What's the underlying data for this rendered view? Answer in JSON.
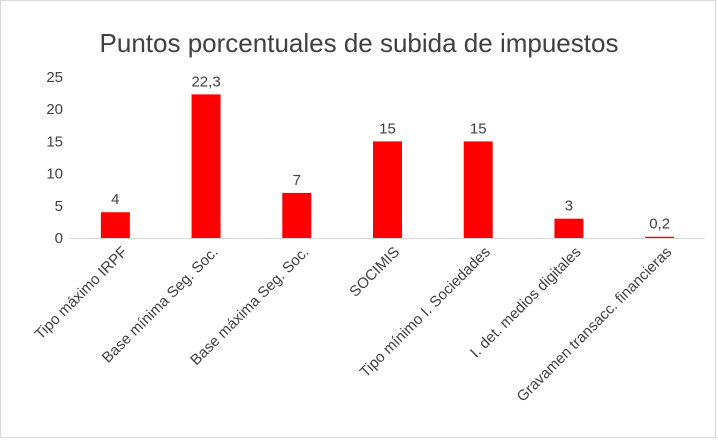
{
  "chart_data": {
    "type": "bar",
    "title": "Puntos porcentuales de subida de impuestos",
    "categories": [
      "Tipo máximo IRPF",
      "Base mínima Seg. Soc.",
      "Base máxima Seg. Soc.",
      "SOCIMIS",
      "Tipo mínimo I. Sociedades",
      "I. det. medios digitales",
      "Gravamen transacc. financieras"
    ],
    "values": [
      4,
      22.3,
      7,
      15,
      15,
      3,
      0.2
    ],
    "value_labels": [
      "4",
      "22,3",
      "7",
      "15",
      "15",
      "3",
      "0,2"
    ],
    "ylim": [
      0,
      25
    ],
    "yticks": [
      0,
      5,
      10,
      15,
      20,
      25
    ],
    "xlabel": "",
    "ylabel": "",
    "grid": false,
    "legend": "none",
    "bar_color": "#ff0000",
    "axis_color": "#d9d9d9",
    "text_color": "#404040"
  }
}
